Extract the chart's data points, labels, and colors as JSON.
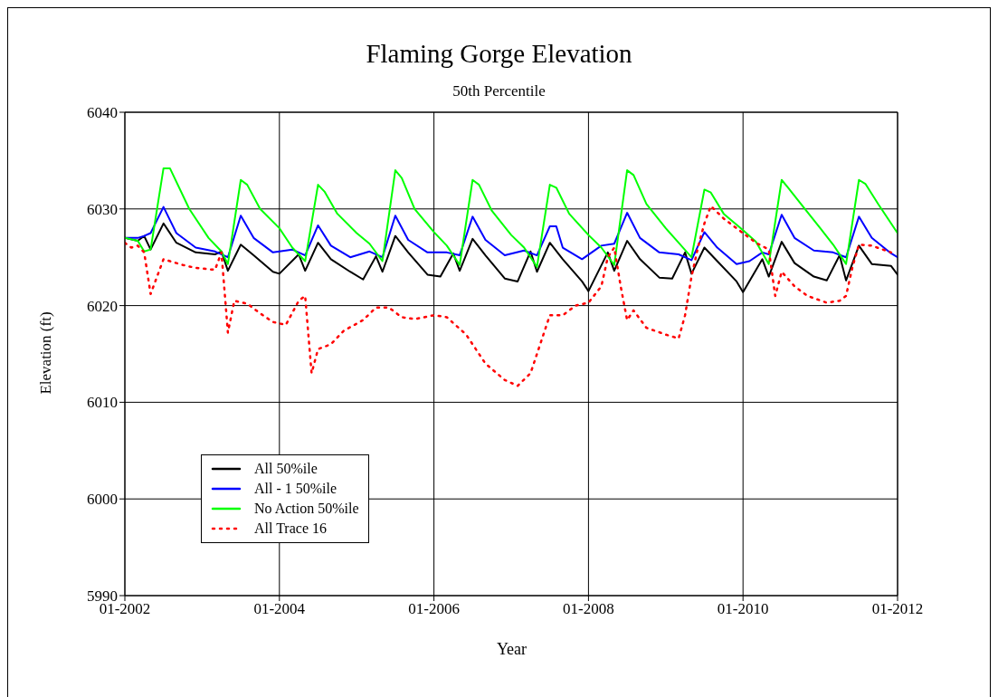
{
  "chart_data": {
    "type": "line",
    "title": "Flaming Gorge Elevation",
    "subtitle": "50th Percentile",
    "xlabel": "Year",
    "ylabel": "Elevation (ft)",
    "xlim": [
      "2002-01",
      "2012-01"
    ],
    "xticks": [
      {
        "value": "2002-01",
        "label": "01-2002"
      },
      {
        "value": "2004-01",
        "label": "01-2004"
      },
      {
        "value": "2006-01",
        "label": "01-2006"
      },
      {
        "value": "2008-01",
        "label": "01-2008"
      },
      {
        "value": "2010-01",
        "label": "01-2010"
      },
      {
        "value": "2012-01",
        "label": "01-2012"
      }
    ],
    "ylim": [
      5990,
      6040
    ],
    "yticks": [
      5990,
      6000,
      6010,
      6020,
      6030,
      6040
    ],
    "grid": true,
    "legend": "bottom left",
    "marker": "none",
    "series": [
      {
        "name": "All 50%ile",
        "color": "#000000",
        "line_style": "solid",
        "x": [
          "2002-01",
          "2002-03",
          "2002-04",
          "2002-05",
          "2002-07",
          "2002-09",
          "2002-12",
          "2003-03",
          "2003-04",
          "2003-05",
          "2003-07",
          "2003-09",
          "2003-12",
          "2004-01",
          "2004-04",
          "2004-05",
          "2004-07",
          "2004-09",
          "2004-12",
          "2005-02",
          "2005-04",
          "2005-05",
          "2005-07",
          "2005-09",
          "2005-12",
          "2006-02",
          "2006-04",
          "2006-05",
          "2006-07",
          "2006-09",
          "2006-12",
          "2007-02",
          "2007-04",
          "2007-05",
          "2007-07",
          "2007-09",
          "2007-12",
          "2008-01",
          "2008-04",
          "2008-05",
          "2008-07",
          "2008-09",
          "2008-12",
          "2009-02",
          "2009-04",
          "2009-05",
          "2009-07",
          "2009-09",
          "2009-12",
          "2010-01",
          "2010-04",
          "2010-05",
          "2010-07",
          "2010-09",
          "2010-12",
          "2011-02",
          "2011-04",
          "2011-05",
          "2011-07",
          "2011-09",
          "2011-12",
          "2012-01"
        ],
        "values": [
          6027,
          6026.7,
          6027.2,
          6025.8,
          6028.5,
          6026.5,
          6025.5,
          6025.3,
          6025.6,
          6023.6,
          6026.3,
          6025.2,
          6023.5,
          6023.3,
          6025.3,
          6023.6,
          6026.5,
          6024.8,
          6023.5,
          6022.7,
          6025.1,
          6023.5,
          6027.2,
          6025.5,
          6023.2,
          6023,
          6025.4,
          6023.6,
          6026.9,
          6025.2,
          6022.8,
          6022.5,
          6025.6,
          6023.5,
          6026.5,
          6024.8,
          6022.5,
          6021.5,
          6025.5,
          6023.6,
          6026.7,
          6024.8,
          6022.9,
          6022.8,
          6025.5,
          6023.3,
          6026,
          6024.6,
          6022.5,
          6021.4,
          6024.8,
          6023,
          6026.6,
          6024.4,
          6023,
          6022.6,
          6025.2,
          6022.6,
          6026.2,
          6024.3,
          6024.1,
          6023.2
        ]
      },
      {
        "name": "All - 1 50%ile",
        "color": "#0000ff",
        "line_style": "solid",
        "x": [
          "2002-01",
          "2002-03",
          "2002-04",
          "2002-05",
          "2002-07",
          "2002-09",
          "2002-12",
          "2003-03",
          "2003-05",
          "2003-07",
          "2003-09",
          "2003-12",
          "2004-03",
          "2004-05",
          "2004-07",
          "2004-09",
          "2004-12",
          "2005-03",
          "2005-05",
          "2005-07",
          "2005-09",
          "2005-12",
          "2006-03",
          "2006-05",
          "2006-07",
          "2006-09",
          "2006-12",
          "2007-03",
          "2007-05",
          "2007-07",
          "2007-08",
          "2007-09",
          "2007-12",
          "2008-03",
          "2008-05",
          "2008-07",
          "2008-09",
          "2008-12",
          "2009-03",
          "2009-05",
          "2009-07",
          "2009-09",
          "2009-12",
          "2010-02",
          "2010-04",
          "2010-05",
          "2010-07",
          "2010-09",
          "2010-12",
          "2011-03",
          "2011-05",
          "2011-07",
          "2011-09",
          "2011-12",
          "2012-01"
        ],
        "values": [
          6027,
          6027,
          6027.2,
          6027.5,
          6030.2,
          6027.5,
          6026,
          6025.6,
          6025,
          6029.3,
          6027,
          6025.5,
          6025.8,
          6025.2,
          6028.3,
          6026.2,
          6025,
          6025.6,
          6025,
          6029.3,
          6026.8,
          6025.5,
          6025.5,
          6025.2,
          6029.2,
          6026.8,
          6025.2,
          6025.7,
          6025.2,
          6028.2,
          6028.2,
          6026,
          6024.8,
          6026.2,
          6026.4,
          6029.6,
          6027,
          6025.5,
          6025.3,
          6024.7,
          6027.6,
          6026,
          6024.3,
          6024.6,
          6025.5,
          6025.3,
          6029.4,
          6027,
          6025.7,
          6025.5,
          6025,
          6029.2,
          6027,
          6025.4,
          6025
        ]
      },
      {
        "name": "No Action 50%ile",
        "color": "#00ff00",
        "line_style": "solid",
        "x": [
          "2002-01",
          "2002-03",
          "2002-04",
          "2002-05",
          "2002-07",
          "2002-08",
          "2002-11",
          "2003-02",
          "2003-04",
          "2003-05",
          "2003-07",
          "2003-08",
          "2003-10",
          "2004-01",
          "2004-03",
          "2004-05",
          "2004-07",
          "2004-08",
          "2004-10",
          "2005-01",
          "2005-03",
          "2005-05",
          "2005-07",
          "2005-08",
          "2005-10",
          "2006-01",
          "2006-03",
          "2006-05",
          "2006-07",
          "2006-08",
          "2006-10",
          "2007-01",
          "2007-03",
          "2007-05",
          "2007-07",
          "2007-08",
          "2007-10",
          "2008-01",
          "2008-03",
          "2008-05",
          "2008-07",
          "2008-08",
          "2008-10",
          "2009-01",
          "2009-03",
          "2009-05",
          "2009-07",
          "2009-08",
          "2009-10",
          "2010-01",
          "2010-03",
          "2010-05",
          "2010-07",
          "2010-08",
          "2010-10",
          "2011-01",
          "2011-03",
          "2011-05",
          "2011-07",
          "2011-08",
          "2011-10",
          "2012-01"
        ],
        "values": [
          6027,
          6026.7,
          6025.6,
          6025.8,
          6034.2,
          6034.2,
          6030,
          6027,
          6025.6,
          6024.3,
          6033,
          6032.5,
          6030,
          6028,
          6026,
          6024.6,
          6032.5,
          6031.8,
          6029.5,
          6027.5,
          6026.4,
          6024.6,
          6034,
          6033.2,
          6030,
          6027.6,
          6026.2,
          6024.2,
          6033,
          6032.5,
          6029.8,
          6027.3,
          6026,
          6024,
          6032.5,
          6032.2,
          6029.5,
          6027.3,
          6026,
          6024.2,
          6034,
          6033.5,
          6030.5,
          6028,
          6026.5,
          6025,
          6032,
          6031.7,
          6029.5,
          6027.8,
          6026.6,
          6024.3,
          6033,
          6032.2,
          6030.5,
          6028,
          6026.3,
          6024.3,
          6033,
          6032.6,
          6030.5,
          6027.5
        ]
      },
      {
        "name": "All Trace 16",
        "color": "#ff0000",
        "line_style": "dotted",
        "x": [
          "2002-01",
          "2002-02",
          "2002-03",
          "2002-04",
          "2002-05",
          "2002-06",
          "2002-07",
          "2002-08",
          "2002-10",
          "2002-12",
          "2003-03",
          "2003-04",
          "2003-05",
          "2003-06",
          "2003-08",
          "2003-10",
          "2003-12",
          "2004-02",
          "2004-04",
          "2004-05",
          "2004-06",
          "2004-07",
          "2004-09",
          "2004-11",
          "2005-02",
          "2005-04",
          "2005-06",
          "2005-08",
          "2005-10",
          "2006-01",
          "2006-03",
          "2006-06",
          "2006-09",
          "2006-12",
          "2007-02",
          "2007-04",
          "2007-06",
          "2007-07",
          "2007-09",
          "2007-11",
          "2008-01",
          "2008-03",
          "2008-04",
          "2008-05",
          "2008-06",
          "2008-07",
          "2008-08",
          "2008-10",
          "2009-01",
          "2009-03",
          "2009-04",
          "2009-05",
          "2009-06",
          "2009-07",
          "2009-08",
          "2009-10",
          "2010-01",
          "2010-03",
          "2010-05",
          "2010-06",
          "2010-07",
          "2010-09",
          "2010-11",
          "2011-02",
          "2011-04",
          "2011-05",
          "2011-06",
          "2011-07",
          "2011-09",
          "2011-12"
        ],
        "values": [
          6026.5,
          6026,
          6026.2,
          6025.5,
          6021.2,
          6023,
          6024.8,
          6024.6,
          6024.2,
          6023.9,
          6023.7,
          6025.5,
          6017.2,
          6020.5,
          6020.2,
          6019.2,
          6018.3,
          6018,
          6020.5,
          6021,
          6013,
          6015.5,
          6016,
          6017.4,
          6018.5,
          6019.8,
          6019.8,
          6018.8,
          6018.6,
          6019,
          6018.8,
          6017,
          6014,
          6012.3,
          6011.7,
          6013,
          6017,
          6019,
          6019,
          6020,
          6020.3,
          6022,
          6025,
          6026,
          6022,
          6018.5,
          6019.5,
          6017.7,
          6017,
          6016.6,
          6019,
          6023,
          6026,
          6028.5,
          6030.3,
          6029,
          6027.5,
          6026.5,
          6025.8,
          6021,
          6023.5,
          6022,
          6021,
          6020.3,
          6020.5,
          6021,
          6024,
          6026.3,
          6026.2,
          6025.5
        ]
      }
    ]
  }
}
